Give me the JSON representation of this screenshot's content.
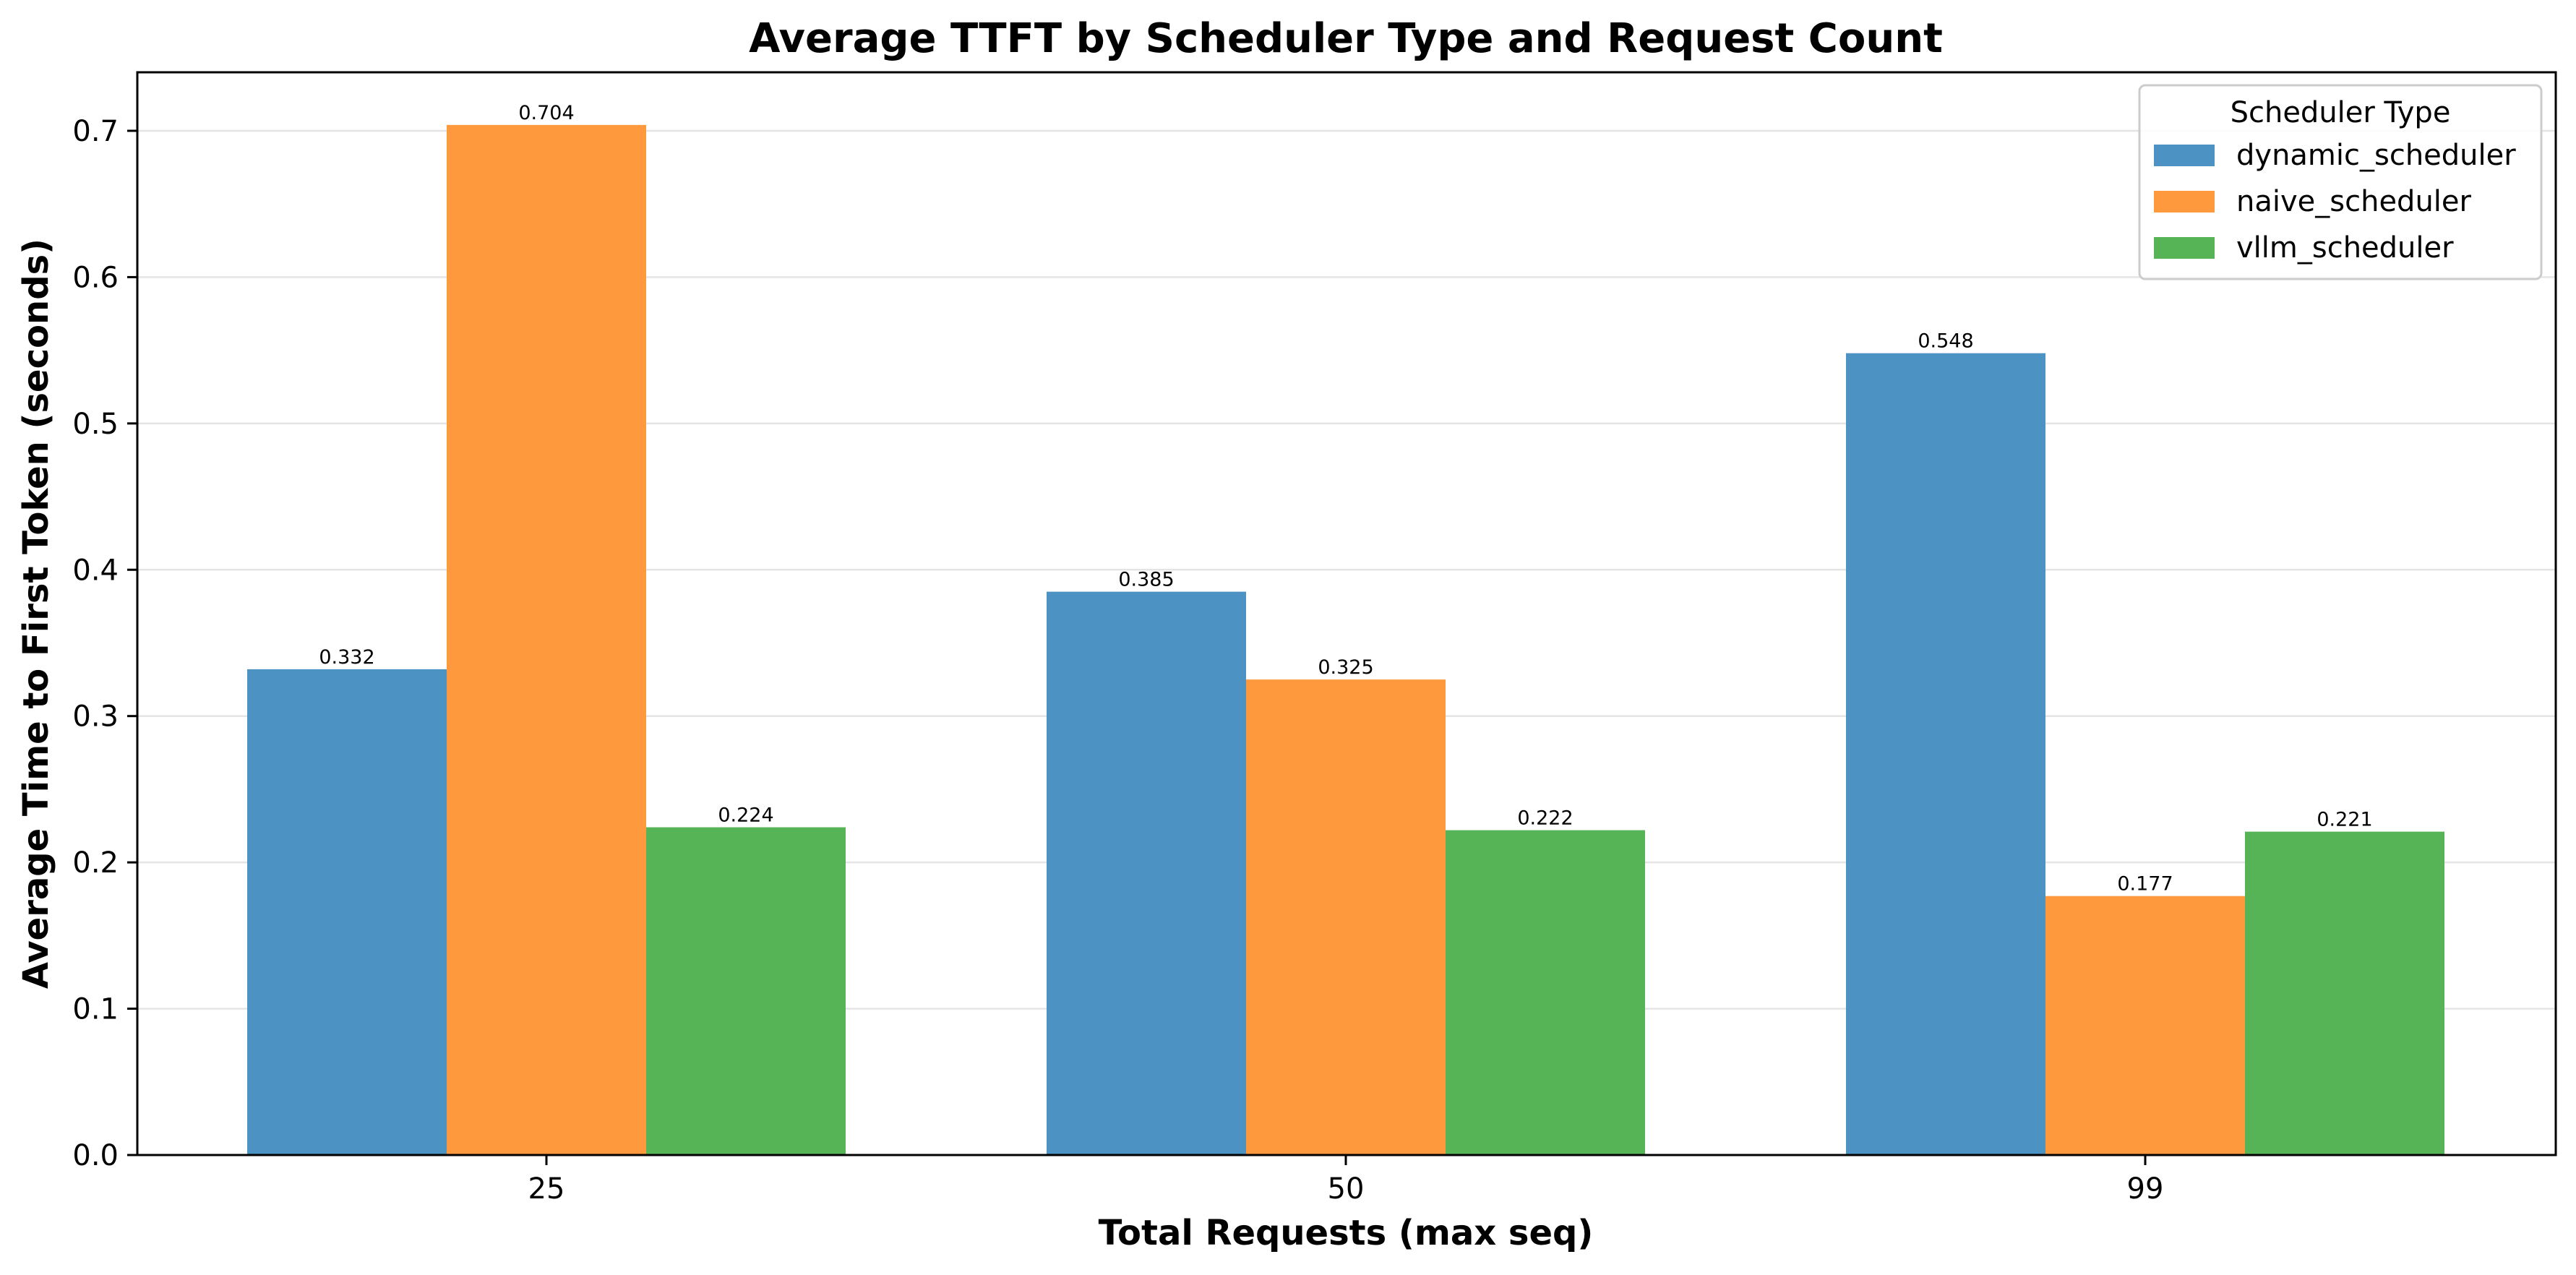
{
  "chart_data": {
    "type": "bar",
    "title": "Average TTFT by Scheduler Type and Request Count",
    "xlabel": "Total Requests (max seq)",
    "ylabel": "Average Time to First Token (seconds)",
    "categories": [
      "25",
      "50",
      "99"
    ],
    "series": [
      {
        "name": "dynamic_scheduler",
        "color": "#4c92c3",
        "values": [
          0.332,
          0.385,
          0.548
        ]
      },
      {
        "name": "naive_scheduler",
        "color": "#ff993e",
        "values": [
          0.704,
          0.325,
          0.177
        ]
      },
      {
        "name": "vllm_scheduler",
        "color": "#56b356",
        "values": [
          0.224,
          0.222,
          0.221
        ]
      }
    ],
    "data_labels": [
      [
        "0.332",
        "0.385",
        "0.548"
      ],
      [
        "0.704",
        "0.325",
        "0.177"
      ],
      [
        "0.224",
        "0.222",
        "0.221"
      ]
    ],
    "ylim": [
      0,
      0.74
    ],
    "yticks": [
      "0.0",
      "0.1",
      "0.2",
      "0.3",
      "0.4",
      "0.5",
      "0.6",
      "0.7"
    ],
    "grid": "y",
    "legend": {
      "title": "Scheduler Type",
      "placement": "top-right"
    }
  }
}
